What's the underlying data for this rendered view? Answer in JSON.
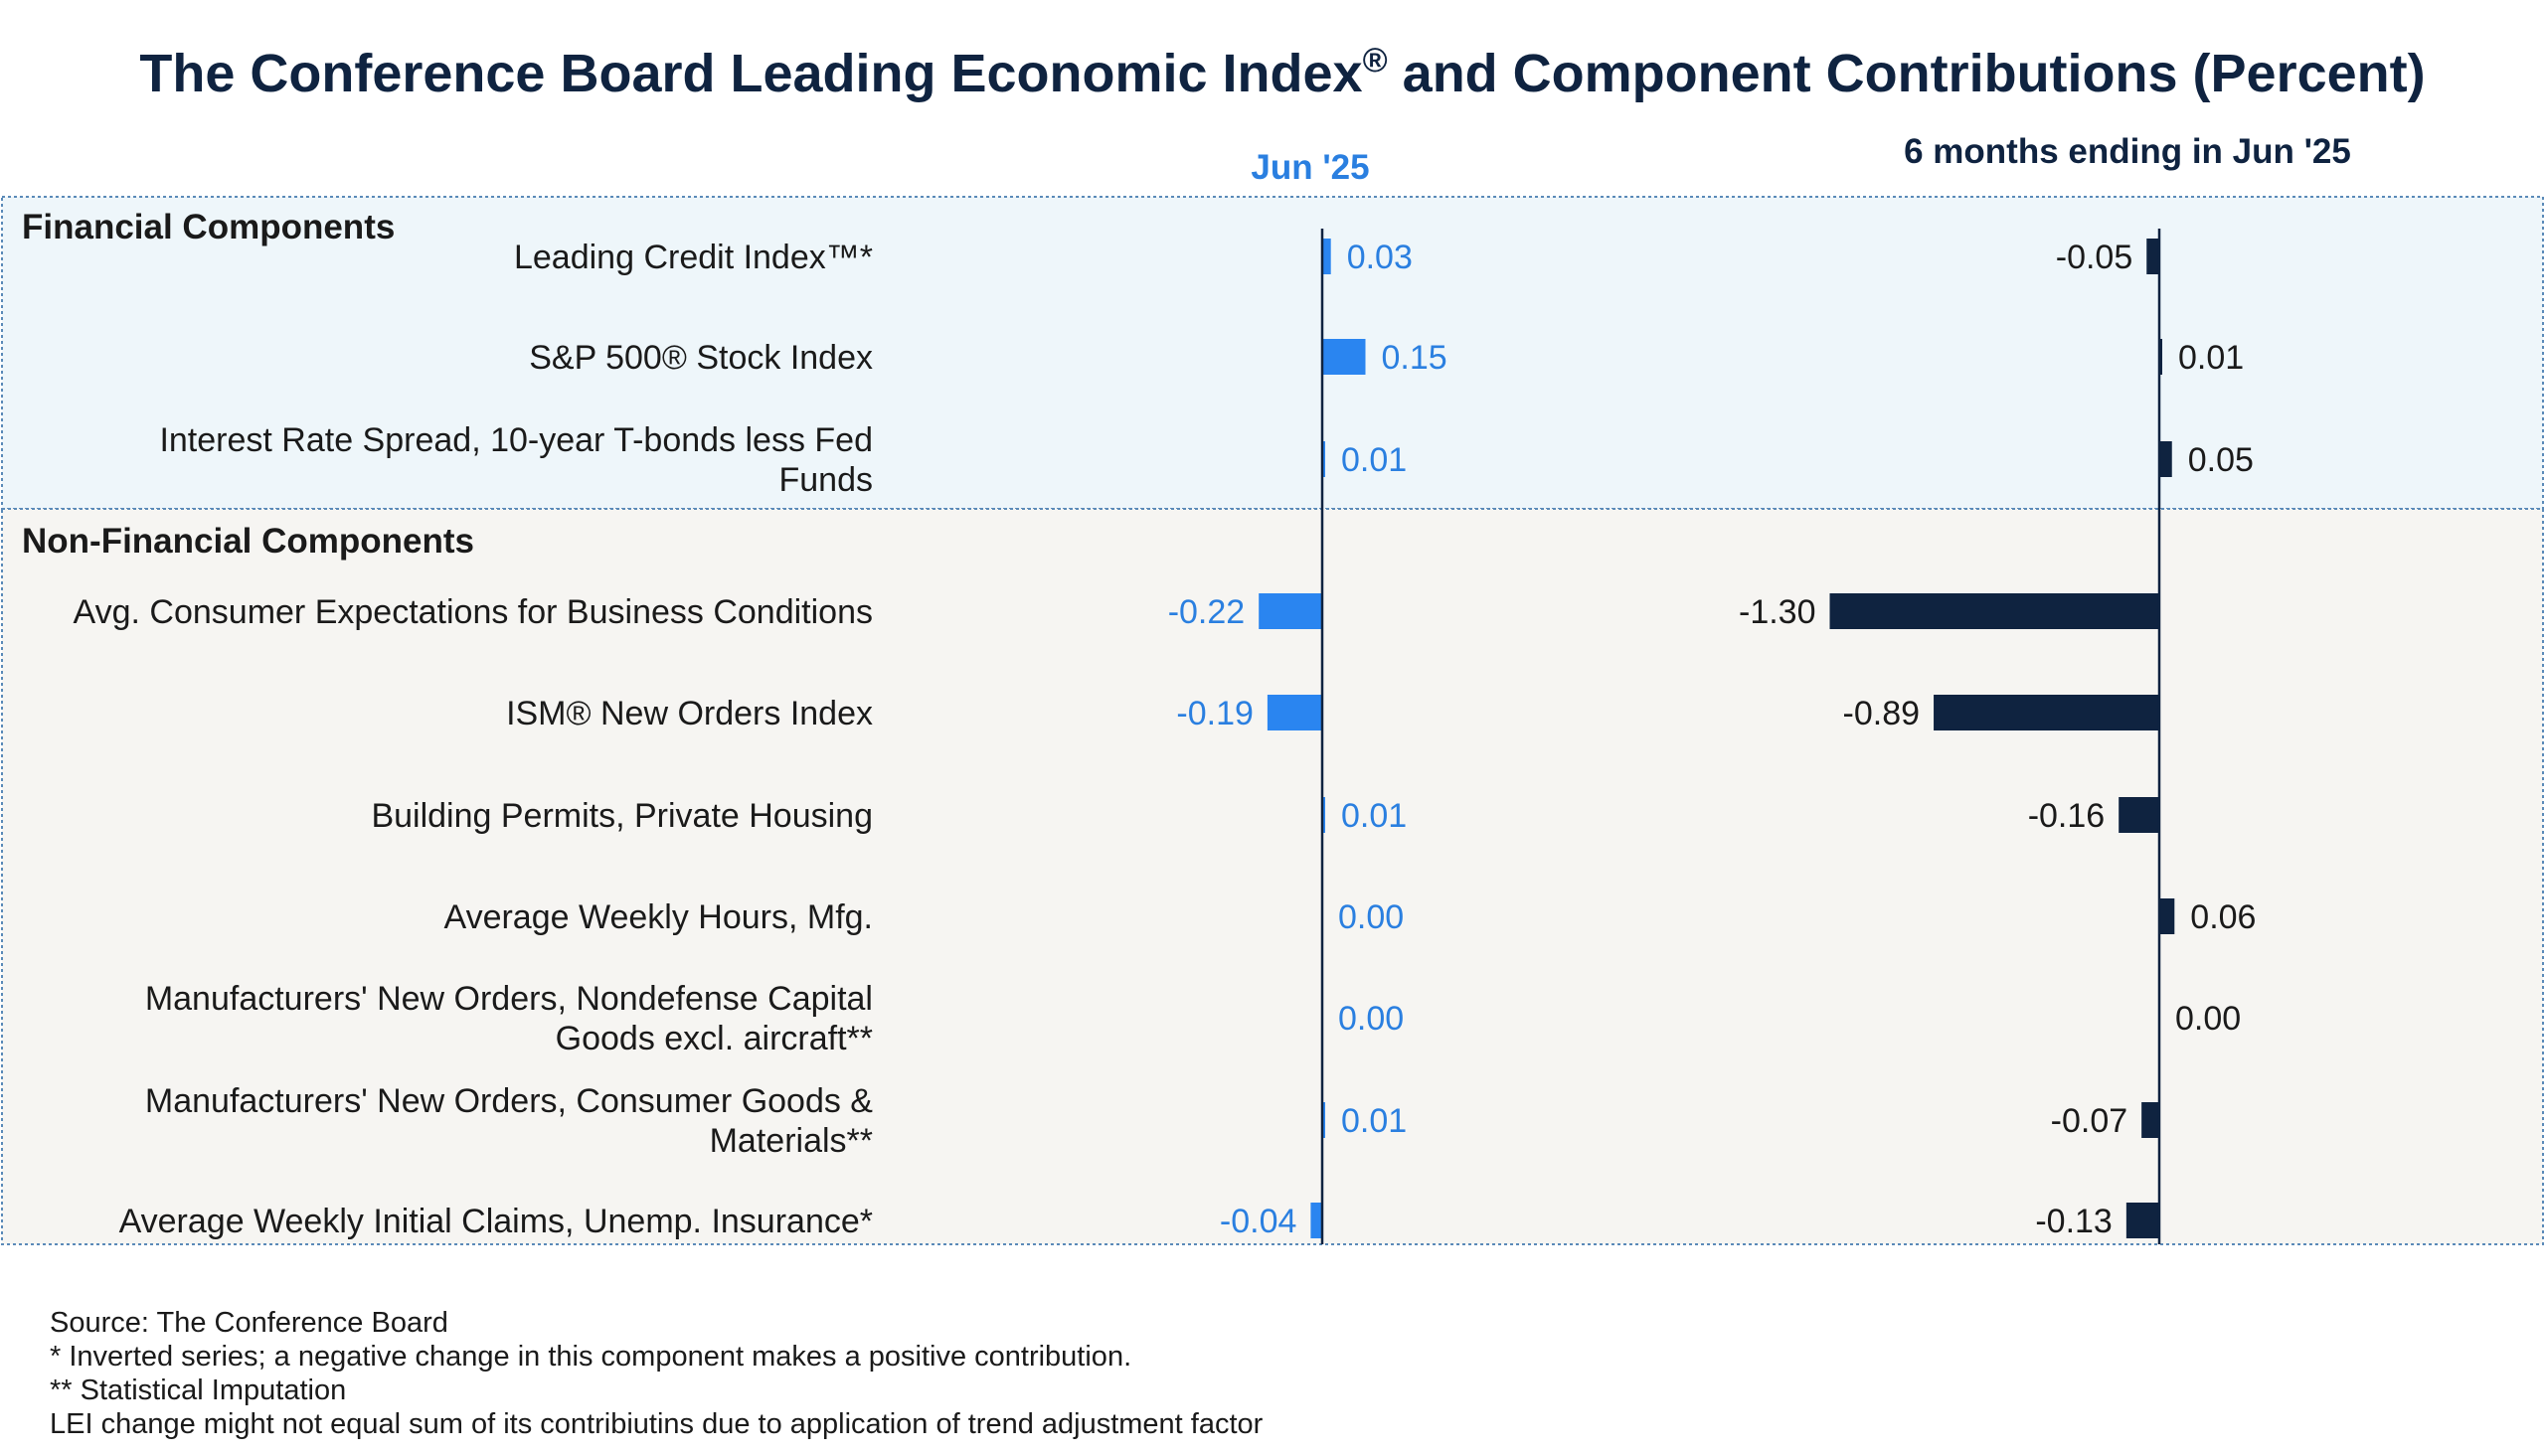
{
  "chart_data": {
    "type": "bar",
    "orientation": "horizontal",
    "title": "The Conference Board Leading Economic Index® and Component Contributions (Percent)",
    "groups": [
      {
        "name": "Financial Components",
        "rows": [
          0,
          1,
          2
        ]
      },
      {
        "name": "Non-Financial Components",
        "rows": [
          3,
          4,
          5,
          6,
          7,
          8,
          9
        ]
      }
    ],
    "categories": [
      [
        "Leading Credit Index™*"
      ],
      [
        "S&P 500® Stock Index"
      ],
      [
        "Interest Rate Spread, 10-year T-bonds less Fed",
        "Funds"
      ],
      [
        "Avg. Consumer Expectations for Business Conditions"
      ],
      [
        "ISM® New Orders Index"
      ],
      [
        "Building Permits, Private Housing"
      ],
      [
        "Average Weekly Hours, Mfg."
      ],
      [
        "Manufacturers' New Orders, Nondefense Capital",
        "Goods excl. aircraft**"
      ],
      [
        "Manufacturers' New Orders, Consumer Goods &",
        "Materials**"
      ],
      [
        "Average Weekly Initial Claims, Unemp. Insurance*"
      ]
    ],
    "series": [
      {
        "name": "Jun  '25",
        "color": "#2a85f0",
        "label_color": "#2a7fe0",
        "values": [
          0.03,
          0.15,
          0.01,
          -0.22,
          -0.19,
          0.01,
          0.0,
          0.0,
          0.01,
          -0.04
        ],
        "labels": [
          "0.03",
          "0.15",
          "0.01",
          "-0.22",
          "-0.19",
          "0.01",
          "0.00",
          "0.00",
          "0.01",
          "-0.04"
        ]
      },
      {
        "name": "6 months ending in Jun  '25",
        "color": "#0f2340",
        "label_color": "#1a1a1a",
        "values": [
          -0.05,
          0.01,
          0.05,
          -1.3,
          -0.89,
          -0.16,
          0.06,
          0.0,
          -0.07,
          -0.13
        ],
        "labels": [
          "-0.05",
          "0.01",
          "0.05",
          "-1.30",
          "-0.89",
          "-0.16",
          "0.06",
          "0.00",
          "-0.07",
          "-0.13"
        ]
      }
    ],
    "footnotes": [
      "Source: The Conference Board",
      "*  Inverted series; a negative change in this component makes a positive contribution.",
      "**  Statistical Imputation",
      "LEI change might not equal sum of its contribiutins due to application of trend adjustment factor"
    ],
    "grid": false,
    "colors": {
      "title": "#0f2340",
      "financial_panel": "#eef6fa",
      "nonfinancial_panel": "#f6f5f2",
      "panel_border": "#5a8ab8",
      "zero_line": "#0f2340"
    }
  }
}
